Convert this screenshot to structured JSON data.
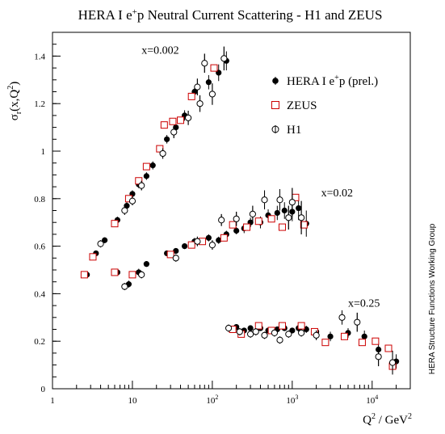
{
  "page_title": "HERA I e+p Neutral Current Scattering - H1 and ZEUS",
  "side_label": "HERA Structure Functions Working Group",
  "colors": {
    "hera": "#000000",
    "zeus": "#cc0000",
    "h1": "#000000",
    "axis": "#000000"
  },
  "chart_data": {
    "type": "scatter",
    "title": "HERA I e⁺p Neutral Current Scattering - H1 and ZEUS",
    "xlabel": "Q² / GeV²",
    "ylabel": "σr(x,Q²)",
    "xscale": "log",
    "xlim": [
      1,
      30000
    ],
    "ylim": [
      0,
      1.5
    ],
    "grid": false,
    "legend_placement": "top-right",
    "x_tick_labels": [
      "1",
      "10",
      "10²",
      "10³",
      "10⁴"
    ],
    "y_tick_labels": [
      "0",
      "0.2",
      "0.4",
      "0.6",
      "0.8",
      "1",
      "1.2",
      "1.4"
    ],
    "annotations": [
      {
        "text": "x=0.002",
        "x": 13,
        "y": 1.41
      },
      {
        "text": "x=0.02",
        "x": 2300,
        "y": 0.81
      },
      {
        "text": "x=0.25",
        "x": 5000,
        "y": 0.345
      }
    ],
    "legend": [
      {
        "name": "HERA I e⁺p (prel.)",
        "marker": "filled-circle"
      },
      {
        "name": "ZEUS",
        "marker": "open-square"
      },
      {
        "name": "H1",
        "marker": "open-circle"
      }
    ],
    "series": [
      {
        "name": "HERA I e⁺p (prel.)",
        "points": [
          {
            "x": 3.5,
            "y": 0.57,
            "err": 0.012
          },
          {
            "x": 4.5,
            "y": 0.625,
            "err": 0.012
          },
          {
            "x": 6.5,
            "y": 0.71,
            "err": 0.014
          },
          {
            "x": 8.5,
            "y": 0.77,
            "err": 0.015
          },
          {
            "x": 10,
            "y": 0.82,
            "err": 0.015
          },
          {
            "x": 12,
            "y": 0.86,
            "err": 0.016
          },
          {
            "x": 15,
            "y": 0.895,
            "err": 0.016
          },
          {
            "x": 18,
            "y": 0.94,
            "err": 0.017
          },
          {
            "x": 27,
            "y": 1.05,
            "err": 0.018
          },
          {
            "x": 35,
            "y": 1.1,
            "err": 0.02
          },
          {
            "x": 45,
            "y": 1.15,
            "err": 0.022
          },
          {
            "x": 60,
            "y": 1.25,
            "err": 0.025
          },
          {
            "x": 90,
            "y": 1.29,
            "err": 0.03
          },
          {
            "x": 120,
            "y": 1.33,
            "err": 0.035
          },
          {
            "x": 150,
            "y": 1.38,
            "err": 0.04
          },
          {
            "x": 2.7,
            "y": 0.48,
            "err": 0.012
          },
          {
            "x": 6.5,
            "y": 0.49,
            "err": 0.012
          },
          {
            "x": 9,
            "y": 0.44,
            "err": 0.015
          },
          {
            "x": 12,
            "y": 0.49,
            "err": 0.015
          },
          {
            "x": 15,
            "y": 0.525,
            "err": 0.012
          },
          {
            "x": 27,
            "y": 0.57,
            "err": 0.012
          },
          {
            "x": 35,
            "y": 0.58,
            "err": 0.012
          },
          {
            "x": 45,
            "y": 0.6,
            "err": 0.012
          },
          {
            "x": 60,
            "y": 0.62,
            "err": 0.015
          },
          {
            "x": 90,
            "y": 0.635,
            "err": 0.015
          },
          {
            "x": 120,
            "y": 0.625,
            "err": 0.015
          },
          {
            "x": 150,
            "y": 0.65,
            "err": 0.015
          },
          {
            "x": 200,
            "y": 0.665,
            "err": 0.015
          },
          {
            "x": 250,
            "y": 0.675,
            "err": 0.02
          },
          {
            "x": 300,
            "y": 0.7,
            "err": 0.02
          },
          {
            "x": 400,
            "y": 0.7,
            "err": 0.025
          },
          {
            "x": 500,
            "y": 0.73,
            "err": 0.025
          },
          {
            "x": 650,
            "y": 0.74,
            "err": 0.03
          },
          {
            "x": 800,
            "y": 0.75,
            "err": 0.035
          },
          {
            "x": 1000,
            "y": 0.745,
            "err": 0.04
          },
          {
            "x": 1200,
            "y": 0.76,
            "err": 0.05
          },
          {
            "x": 1500,
            "y": 0.695,
            "err": 0.055
          },
          {
            "x": 200,
            "y": 0.26,
            "err": 0.012
          },
          {
            "x": 250,
            "y": 0.245,
            "err": 0.012
          },
          {
            "x": 300,
            "y": 0.255,
            "err": 0.012
          },
          {
            "x": 400,
            "y": 0.255,
            "err": 0.012
          },
          {
            "x": 500,
            "y": 0.245,
            "err": 0.012
          },
          {
            "x": 650,
            "y": 0.25,
            "err": 0.012
          },
          {
            "x": 800,
            "y": 0.255,
            "err": 0.012
          },
          {
            "x": 1000,
            "y": 0.245,
            "err": 0.012
          },
          {
            "x": 1200,
            "y": 0.255,
            "err": 0.015
          },
          {
            "x": 1500,
            "y": 0.25,
            "err": 0.015
          },
          {
            "x": 2000,
            "y": 0.24,
            "err": 0.015
          },
          {
            "x": 3000,
            "y": 0.22,
            "err": 0.02
          },
          {
            "x": 5000,
            "y": 0.235,
            "err": 0.02
          },
          {
            "x": 8000,
            "y": 0.22,
            "err": 0.025
          },
          {
            "x": 12000,
            "y": 0.165,
            "err": 0.03
          },
          {
            "x": 20000,
            "y": 0.115,
            "err": 0.03
          }
        ]
      },
      {
        "name": "ZEUS",
        "points": [
          {
            "x": 2.5,
            "y": 0.48,
            "err": 0.012
          },
          {
            "x": 3.2,
            "y": 0.555,
            "err": 0.012
          },
          {
            "x": 6,
            "y": 0.695,
            "err": 0.015
          },
          {
            "x": 9,
            "y": 0.8,
            "err": 0.015
          },
          {
            "x": 12,
            "y": 0.875,
            "err": 0.016
          },
          {
            "x": 15,
            "y": 0.935,
            "err": 0.016
          },
          {
            "x": 22,
            "y": 1.01,
            "err": 0.018
          },
          {
            "x": 25,
            "y": 1.11,
            "err": 0.02
          },
          {
            "x": 32,
            "y": 1.125,
            "err": 0.022
          },
          {
            "x": 40,
            "y": 1.13,
            "err": 0.022
          },
          {
            "x": 55,
            "y": 1.23,
            "err": 0.025
          },
          {
            "x": 105,
            "y": 1.35,
            "err": 0.035
          },
          {
            "x": 6,
            "y": 0.49,
            "err": 0.012
          },
          {
            "x": 10,
            "y": 0.48,
            "err": 0.012
          },
          {
            "x": 30,
            "y": 0.565,
            "err": 0.012
          },
          {
            "x": 55,
            "y": 0.605,
            "err": 0.015
          },
          {
            "x": 75,
            "y": 0.62,
            "err": 0.015
          },
          {
            "x": 140,
            "y": 0.635,
            "err": 0.015
          },
          {
            "x": 180,
            "y": 0.69,
            "err": 0.02
          },
          {
            "x": 270,
            "y": 0.68,
            "err": 0.02
          },
          {
            "x": 380,
            "y": 0.705,
            "err": 0.025
          },
          {
            "x": 550,
            "y": 0.715,
            "err": 0.03
          },
          {
            "x": 750,
            "y": 0.68,
            "err": 0.04
          },
          {
            "x": 1100,
            "y": 0.805,
            "err": 0.06
          },
          {
            "x": 1400,
            "y": 0.69,
            "err": 0.06
          },
          {
            "x": 180,
            "y": 0.25,
            "err": 0.012
          },
          {
            "x": 230,
            "y": 0.23,
            "err": 0.012
          },
          {
            "x": 380,
            "y": 0.265,
            "err": 0.012
          },
          {
            "x": 550,
            "y": 0.245,
            "err": 0.012
          },
          {
            "x": 750,
            "y": 0.265,
            "err": 0.012
          },
          {
            "x": 1300,
            "y": 0.265,
            "err": 0.015
          },
          {
            "x": 1900,
            "y": 0.24,
            "err": 0.015
          },
          {
            "x": 2600,
            "y": 0.195,
            "err": 0.02
          },
          {
            "x": 4500,
            "y": 0.22,
            "err": 0.025
          },
          {
            "x": 7500,
            "y": 0.195,
            "err": 0.03
          },
          {
            "x": 11000,
            "y": 0.2,
            "err": 0.035
          },
          {
            "x": 16000,
            "y": 0.17,
            "err": 0.04
          },
          {
            "x": 18000,
            "y": 0.095,
            "err": 0.04
          }
        ]
      },
      {
        "name": "H1",
        "points": [
          {
            "x": 4,
            "y": 0.61,
            "err": 0.015
          },
          {
            "x": 8,
            "y": 0.75,
            "err": 0.018
          },
          {
            "x": 10,
            "y": 0.79,
            "err": 0.018
          },
          {
            "x": 13,
            "y": 0.855,
            "err": 0.02
          },
          {
            "x": 24,
            "y": 0.99,
            "err": 0.022
          },
          {
            "x": 33,
            "y": 1.08,
            "err": 0.025
          },
          {
            "x": 50,
            "y": 1.14,
            "err": 0.03
          },
          {
            "x": 65,
            "y": 1.27,
            "err": 0.035
          },
          {
            "x": 70,
            "y": 1.2,
            "err": 0.035
          },
          {
            "x": 80,
            "y": 1.37,
            "err": 0.04
          },
          {
            "x": 100,
            "y": 1.24,
            "err": 0.045
          },
          {
            "x": 140,
            "y": 1.39,
            "err": 0.05
          },
          {
            "x": 8,
            "y": 0.43,
            "err": 0.015
          },
          {
            "x": 13,
            "y": 0.48,
            "err": 0.015
          },
          {
            "x": 35,
            "y": 0.55,
            "err": 0.015
          },
          {
            "x": 65,
            "y": 0.62,
            "err": 0.02
          },
          {
            "x": 100,
            "y": 0.605,
            "err": 0.02
          },
          {
            "x": 130,
            "y": 0.71,
            "err": 0.025
          },
          {
            "x": 200,
            "y": 0.715,
            "err": 0.03
          },
          {
            "x": 320,
            "y": 0.735,
            "err": 0.035
          },
          {
            "x": 450,
            "y": 0.795,
            "err": 0.04
          },
          {
            "x": 700,
            "y": 0.795,
            "err": 0.045
          },
          {
            "x": 900,
            "y": 0.72,
            "err": 0.05
          },
          {
            "x": 1000,
            "y": 0.785,
            "err": 0.06
          },
          {
            "x": 1300,
            "y": 0.72,
            "err": 0.07
          },
          {
            "x": 160,
            "y": 0.255,
            "err": 0.015
          },
          {
            "x": 220,
            "y": 0.24,
            "err": 0.015
          },
          {
            "x": 300,
            "y": 0.23,
            "err": 0.015
          },
          {
            "x": 350,
            "y": 0.24,
            "err": 0.015
          },
          {
            "x": 450,
            "y": 0.225,
            "err": 0.015
          },
          {
            "x": 600,
            "y": 0.235,
            "err": 0.015
          },
          {
            "x": 700,
            "y": 0.205,
            "err": 0.015
          },
          {
            "x": 900,
            "y": 0.23,
            "err": 0.015
          },
          {
            "x": 1300,
            "y": 0.235,
            "err": 0.015
          },
          {
            "x": 2000,
            "y": 0.225,
            "err": 0.02
          },
          {
            "x": 4200,
            "y": 0.3,
            "err": 0.03
          },
          {
            "x": 6500,
            "y": 0.28,
            "err": 0.04
          },
          {
            "x": 12000,
            "y": 0.135,
            "err": 0.04
          },
          {
            "x": 18000,
            "y": 0.11,
            "err": 0.05
          }
        ]
      }
    ]
  }
}
